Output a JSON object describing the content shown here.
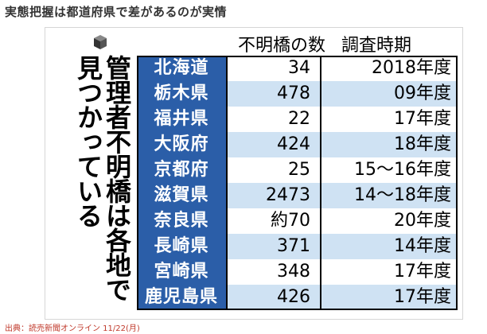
{
  "headline": "実態把握は都道府県で差があるのが実情",
  "vertical_title": {
    "line1": "管理者不明橋は各地で",
    "line2": "見つかっている"
  },
  "table": {
    "headers": [
      "不明橋の数",
      "調査時期"
    ],
    "rows": [
      {
        "pref": "北海道",
        "count": "34",
        "period": "2018年度"
      },
      {
        "pref": "栃木県",
        "count": "478",
        "period": "09年度"
      },
      {
        "pref": "福井県",
        "count": "22",
        "period": "17年度"
      },
      {
        "pref": "大阪府",
        "count": "424",
        "period": "18年度"
      },
      {
        "pref": "京都府",
        "count": "25",
        "period": "15〜16年度"
      },
      {
        "pref": "滋賀県",
        "count": "2473",
        "period": "14〜18年度"
      },
      {
        "pref": "奈良県",
        "count": "約70",
        "period": "20年度"
      },
      {
        "pref": "長崎県",
        "count": "371",
        "period": "14年度"
      },
      {
        "pref": "宮崎県",
        "count": "348",
        "period": "17年度"
      },
      {
        "pref": "鹿児島県",
        "count": "426",
        "period": "17年度"
      }
    ]
  },
  "source": "出典：読売新聞オンライン 11/22(月)",
  "colors": {
    "pref_cell": "#2b5ea8",
    "alt_row": "#cfe2f3",
    "source_text": "#c0392b"
  },
  "icons": {
    "logo": "cube-icon"
  }
}
